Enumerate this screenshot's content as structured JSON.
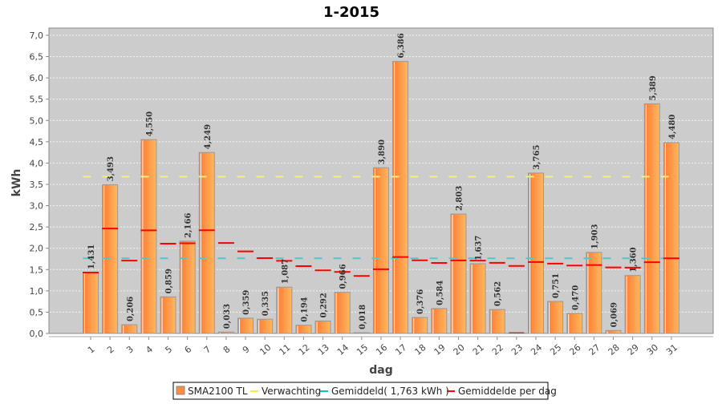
{
  "chart_data": {
    "type": "bar",
    "title": "1-2015",
    "xlabel": "dag",
    "ylabel": "kWh",
    "ylim": [
      0,
      7.0
    ],
    "ytick_step": 0.5,
    "grid": true,
    "legend_placement": "bottom",
    "categories": [
      "1",
      "2",
      "3",
      "4",
      "5",
      "6",
      "7",
      "8",
      "9",
      "10",
      "11",
      "12",
      "13",
      "14",
      "15",
      "16",
      "17",
      "18",
      "19",
      "20",
      "21",
      "22",
      "23",
      "24",
      "25",
      "26",
      "27",
      "28",
      "29",
      "30",
      "31"
    ],
    "series": [
      {
        "name": "SMA2100 TL",
        "kind": "bar",
        "color": "#ff8c40",
        "values": [
          1.431,
          3.493,
          0.206,
          4.55,
          0.859,
          2.166,
          4.249,
          0.033,
          0.359,
          0.335,
          1.087,
          0.194,
          0.292,
          0.966,
          0.018,
          3.89,
          6.386,
          0.376,
          0.584,
          2.803,
          1.637,
          0.562,
          0,
          3.765,
          0.751,
          0.47,
          1.903,
          0.069,
          1.36,
          5.389,
          4.48
        ],
        "labels": [
          "1,431",
          "3,493",
          "0,206",
          "4,550",
          "0,859",
          "2,166",
          "4,249",
          "0,033",
          "0,359",
          "0,335",
          "1,087",
          "0,194",
          "0,292",
          "0,966",
          "0,018",
          "3,890",
          "6,386",
          "0,376",
          "0,584",
          "2,803",
          "1,637",
          "0,562",
          "",
          "3,765",
          "0,751",
          "0,470",
          "1,903",
          "0,069",
          "1,360",
          "5,389",
          "4,480"
        ]
      },
      {
        "name": "Verwachting",
        "kind": "hline",
        "color": "#f0e68c",
        "value": 3.68
      },
      {
        "name": "Gemiddeld( 1,763 kWh )",
        "kind": "hline",
        "color": "#40c8c8",
        "value": 1.763
      },
      {
        "name": "Gemiddelde per dag",
        "kind": "marker",
        "color": "#ff0000",
        "values": [
          1.431,
          2.462,
          1.71,
          2.42,
          2.108,
          2.118,
          2.422,
          2.123,
          1.927,
          1.768,
          1.706,
          1.58,
          1.481,
          1.444,
          1.349,
          1.508,
          1.795,
          1.716,
          1.657,
          1.714,
          1.71,
          1.658,
          1.586,
          1.677,
          1.64,
          1.595,
          1.606,
          1.551,
          1.545,
          1.673,
          1.763
        ]
      }
    ]
  }
}
